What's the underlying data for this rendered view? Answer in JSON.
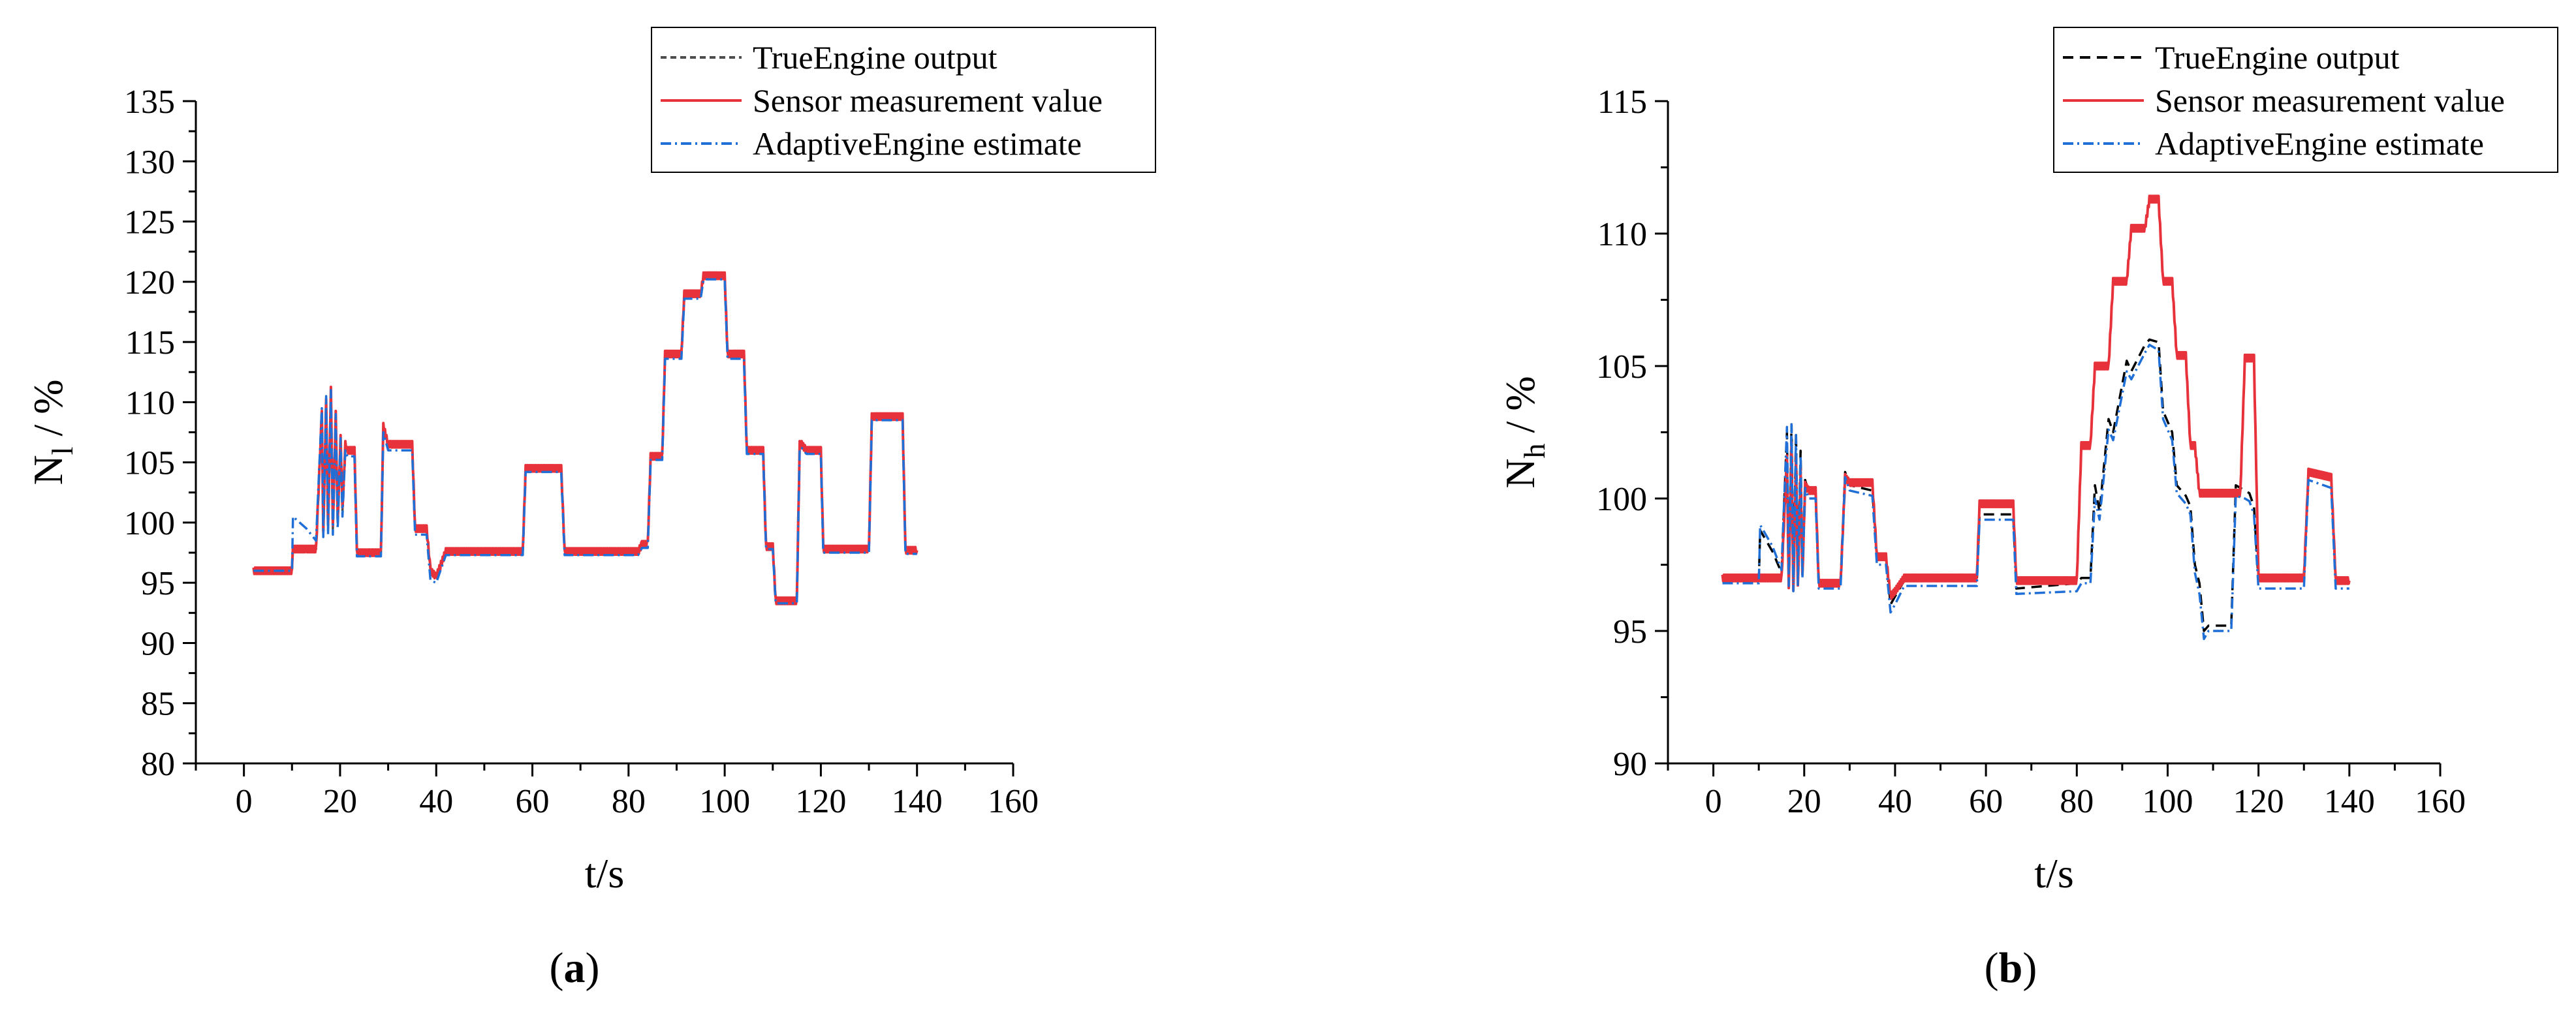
{
  "chart_data": [
    {
      "type": "line",
      "panel_label": "a",
      "xlabel": "t/s",
      "ylabel_main": "N",
      "ylabel_sub": "l",
      "ylabel_unit": " / %",
      "xlim": [
        -10,
        160
      ],
      "ylim": [
        80,
        135
      ],
      "xticks": [
        0,
        20,
        40,
        60,
        80,
        100,
        120,
        140,
        160
      ],
      "yticks": [
        80,
        85,
        90,
        95,
        100,
        105,
        110,
        115,
        120,
        125,
        130,
        135
      ],
      "grid": false,
      "legend_position": "top-right",
      "legend": [
        "TrueEngine output",
        "Sensor measurement value",
        "AdaptiveEngine estimate"
      ],
      "series": [
        {
          "name": "TrueEngine output",
          "color": "#4d4d4d",
          "dash": "short-dash",
          "x": [
            2,
            10,
            10.2,
            13,
            15,
            16.2,
            16.5,
            17.1,
            17.5,
            18.1,
            18.5,
            19.1,
            19.5,
            20.1,
            20.5,
            21.1,
            21.5,
            22.2,
            23,
            23.5,
            28,
            28.5,
            29,
            30,
            30.5,
            35,
            35.6,
            38,
            38.8,
            40,
            42,
            43,
            58,
            58.6,
            66,
            66.7,
            82,
            82.8,
            84,
            84.6,
            87,
            87.6,
            91,
            91.6,
            95,
            95.6,
            100,
            100.6,
            104,
            104.6,
            108,
            108.6,
            110,
            110.6,
            115,
            115.6,
            116,
            117,
            120,
            120.5,
            130,
            130.6,
            131,
            132,
            137,
            137.6,
            140
          ],
          "y": [
            96,
            96,
            97.8,
            97.8,
            97.8,
            109,
            99,
            110,
            99.5,
            111,
            99.5,
            109,
            100,
            107,
            101,
            106.5,
            106,
            106,
            106,
            97.5,
            97.5,
            97.5,
            108,
            106.5,
            106.5,
            106.5,
            99.5,
            99.5,
            96,
            95.5,
            97.6,
            97.6,
            97.6,
            104.5,
            104.5,
            97.6,
            97.6,
            98.2,
            98.2,
            105.5,
            105.5,
            114,
            114,
            119,
            119,
            120.5,
            120.5,
            114,
            114,
            106,
            106,
            98,
            98,
            93.5,
            93.5,
            106.5,
            106.5,
            106,
            106,
            97.8,
            97.8,
            108.8,
            108.8,
            108.8,
            108.8,
            97.7,
            97.7
          ]
        },
        {
          "name": "Sensor measurement value",
          "color": "#e8323b",
          "dash": "solid",
          "x": [
            2,
            10,
            10.2,
            13,
            15,
            16.2,
            16.5,
            17.1,
            17.5,
            18.1,
            18.5,
            19.1,
            19.5,
            20.1,
            20.5,
            21.1,
            21.5,
            22.2,
            23,
            23.5,
            28,
            28.5,
            29,
            30,
            30.5,
            35,
            35.6,
            38,
            38.8,
            40,
            42,
            43,
            58,
            58.6,
            66,
            66.7,
            82,
            82.8,
            84,
            84.6,
            87,
            87.6,
            91,
            91.6,
            95,
            95.6,
            100,
            100.6,
            104,
            104.6,
            108,
            108.6,
            110,
            110.6,
            115,
            115.6,
            116,
            117,
            120,
            120.5,
            130,
            130.6,
            131,
            132,
            137,
            137.6,
            140
          ],
          "y": [
            96,
            96,
            97.8,
            97.8,
            97.8,
            109,
            99,
            110,
            99.5,
            111,
            99.5,
            109,
            100,
            107,
            101,
            106.5,
            106,
            106,
            106,
            97.5,
            97.5,
            97.5,
            108,
            106.5,
            106.5,
            106.5,
            99.5,
            99.5,
            96,
            95.5,
            97.6,
            97.6,
            97.6,
            104.5,
            104.5,
            97.6,
            97.6,
            98.2,
            98.2,
            105.5,
            105.5,
            114,
            114,
            119,
            119,
            120.5,
            120.5,
            114,
            114,
            106,
            106,
            98,
            98,
            93.5,
            93.5,
            106.5,
            106.5,
            106,
            106,
            97.8,
            97.8,
            108.8,
            108.8,
            108.8,
            108.8,
            97.7,
            97.7
          ]
        },
        {
          "name": "AdaptiveEngine estimate",
          "color": "#1f6fd6",
          "dash": "dash-dot",
          "x": [
            2,
            10,
            10.2,
            13,
            15,
            16.2,
            16.5,
            17.1,
            17.5,
            18.1,
            18.5,
            19.1,
            19.5,
            20.1,
            20.5,
            21.1,
            21.5,
            22.2,
            23,
            23.5,
            28,
            28.5,
            29,
            30,
            30.5,
            35,
            35.6,
            38,
            38.8,
            40,
            42,
            43,
            58,
            58.6,
            66,
            66.7,
            82,
            82.8,
            84,
            84.6,
            87,
            87.6,
            91,
            91.6,
            95,
            95.6,
            100,
            100.6,
            104,
            104.6,
            108,
            108.6,
            110,
            110.6,
            115,
            115.6,
            116,
            117,
            120,
            120.5,
            130,
            130.6,
            131,
            132,
            137,
            137.6,
            140
          ],
          "y": [
            96,
            96,
            100.5,
            99.5,
            98.5,
            109.5,
            98.8,
            110.5,
            99,
            111,
            99,
            109,
            99.5,
            107,
            100.5,
            106,
            105.5,
            105.5,
            105.5,
            97.2,
            97.2,
            97.2,
            107.5,
            106,
            106,
            106,
            99,
            99,
            95.2,
            95,
            97.3,
            97.3,
            97.3,
            104.2,
            104.2,
            97.3,
            97.3,
            97.9,
            97.9,
            105.2,
            105.2,
            113.6,
            113.6,
            118.6,
            118.6,
            120.2,
            120.2,
            113.6,
            113.6,
            105.7,
            105.7,
            97.8,
            97.8,
            93.3,
            93.3,
            106.2,
            106.2,
            105.7,
            105.7,
            97.5,
            97.5,
            108.5,
            108.5,
            108.5,
            108.5,
            97.4,
            97.4
          ]
        }
      ]
    },
    {
      "type": "line",
      "panel_label": "b",
      "xlabel": "t/s",
      "ylabel_main": "N",
      "ylabel_sub": "h",
      "ylabel_unit": " / %",
      "xlim": [
        -10,
        160
      ],
      "ylim": [
        90,
        115
      ],
      "xticks": [
        0,
        20,
        40,
        60,
        80,
        100,
        120,
        140,
        160
      ],
      "yticks": [
        90,
        95,
        100,
        105,
        110,
        115
      ],
      "grid": false,
      "legend_position": "top-right",
      "legend": [
        "TrueEngine output",
        "Sensor measurement value",
        "AdaptiveEngine estimate"
      ],
      "series": [
        {
          "name": "TrueEngine output",
          "color": "#000000",
          "dash": "dash",
          "x": [
            2,
            10,
            10.3,
            13,
            15,
            16.2,
            16.6,
            17.2,
            17.6,
            18.2,
            18.6,
            19.2,
            19.6,
            20.2,
            21,
            22.5,
            23.2,
            28,
            29,
            30,
            35,
            36,
            38,
            39,
            40,
            42,
            58,
            58.6,
            66,
            66.7,
            80,
            81,
            83,
            84,
            85,
            87,
            88,
            91,
            92,
            95,
            96,
            98,
            99,
            101,
            102,
            104,
            105,
            106,
            107,
            108,
            109,
            114,
            115,
            117,
            118,
            119,
            120,
            130,
            131,
            136,
            137,
            140
          ],
          "y": [
            96.9,
            96.9,
            98.8,
            98,
            97.2,
            102.5,
            96.9,
            102.8,
            96.7,
            102.5,
            96.8,
            101.8,
            97.2,
            100.7,
            100.2,
            100.2,
            96.8,
            96.8,
            101,
            100.5,
            100.3,
            97.8,
            97.8,
            96,
            96.3,
            96.9,
            96.9,
            99.4,
            99.4,
            96.6,
            96.8,
            97,
            97,
            100.5,
            99.5,
            103,
            102.5,
            105.2,
            104.8,
            105.8,
            106,
            105.9,
            103.3,
            102.5,
            100.5,
            100.1,
            99.7,
            97.5,
            96.8,
            95,
            95.2,
            95.2,
            100.5,
            100.3,
            100.2,
            99.7,
            96.9,
            96.9,
            101,
            100.7,
            96.9,
            96.9
          ]
        },
        {
          "name": "Sensor measurement value",
          "color": "#e8323b",
          "dash": "solid",
          "x": [
            2,
            10,
            10.3,
            13,
            15,
            16.2,
            16.6,
            17.2,
            17.6,
            18.2,
            18.6,
            19.2,
            19.6,
            20.2,
            21,
            22.5,
            23.2,
            28,
            29,
            30,
            35,
            36,
            38,
            39,
            40,
            42,
            58,
            58.6,
            66,
            66.7,
            80,
            81,
            83,
            84,
            87,
            88,
            91,
            92,
            95,
            96,
            98,
            99,
            101,
            102,
            104,
            105,
            106,
            107,
            108,
            109,
            116,
            117,
            119,
            120,
            130,
            131,
            136,
            137,
            140
          ],
          "y": [
            97,
            97,
            97,
            97,
            97,
            101.5,
            96.5,
            102,
            96.4,
            101.5,
            96.6,
            101,
            97,
            100.5,
            100.3,
            100.3,
            96.8,
            96.8,
            100.8,
            100.6,
            100.6,
            97.8,
            97.8,
            96.3,
            96.5,
            97,
            97,
            99.8,
            99.8,
            96.9,
            96.9,
            102,
            102,
            105,
            105,
            108.2,
            108.2,
            110.2,
            110.2,
            111.3,
            111.3,
            108.2,
            108.2,
            105.4,
            105.4,
            102,
            102,
            100.2,
            100.2,
            100.2,
            100.2,
            105.3,
            105.3,
            97,
            97,
            101,
            100.8,
            96.9,
            96.9
          ]
        },
        {
          "name": "AdaptiveEngine estimate",
          "color": "#1f6fd6",
          "dash": "dash-dot",
          "x": [
            2,
            10,
            10.3,
            13,
            15,
            16.2,
            16.6,
            17.2,
            17.6,
            18.2,
            18.6,
            19.2,
            19.6,
            20.2,
            21,
            22.5,
            23.2,
            28,
            29,
            30,
            35,
            36,
            38,
            39,
            40,
            42,
            58,
            58.6,
            66,
            66.7,
            80,
            81,
            83,
            84,
            85,
            87,
            88,
            91,
            92,
            95,
            96,
            98,
            99,
            101,
            102,
            104,
            105,
            106,
            107,
            108,
            109,
            114,
            115,
            117,
            118,
            119,
            120,
            130,
            131,
            136,
            137,
            140
          ],
          "y": [
            96.8,
            96.8,
            99,
            98.2,
            97.3,
            102.7,
            96.7,
            102.8,
            96.5,
            102.4,
            96.7,
            101.6,
            97,
            100.4,
            100,
            100,
            96.6,
            96.6,
            100.8,
            100.3,
            100.1,
            97.5,
            97.5,
            95.7,
            96,
            96.7,
            96.7,
            99.2,
            99.2,
            96.4,
            96.5,
            96.8,
            96.8,
            100,
            99.2,
            102.6,
            102.2,
            104.8,
            104.5,
            105.5,
            105.8,
            105.6,
            103,
            102.2,
            100.2,
            99.8,
            99.4,
            97.2,
            96.4,
            94.7,
            95,
            95,
            100.1,
            100,
            99.9,
            99.4,
            96.6,
            96.6,
            100.7,
            100.4,
            96.6,
            96.6
          ]
        }
      ]
    }
  ]
}
